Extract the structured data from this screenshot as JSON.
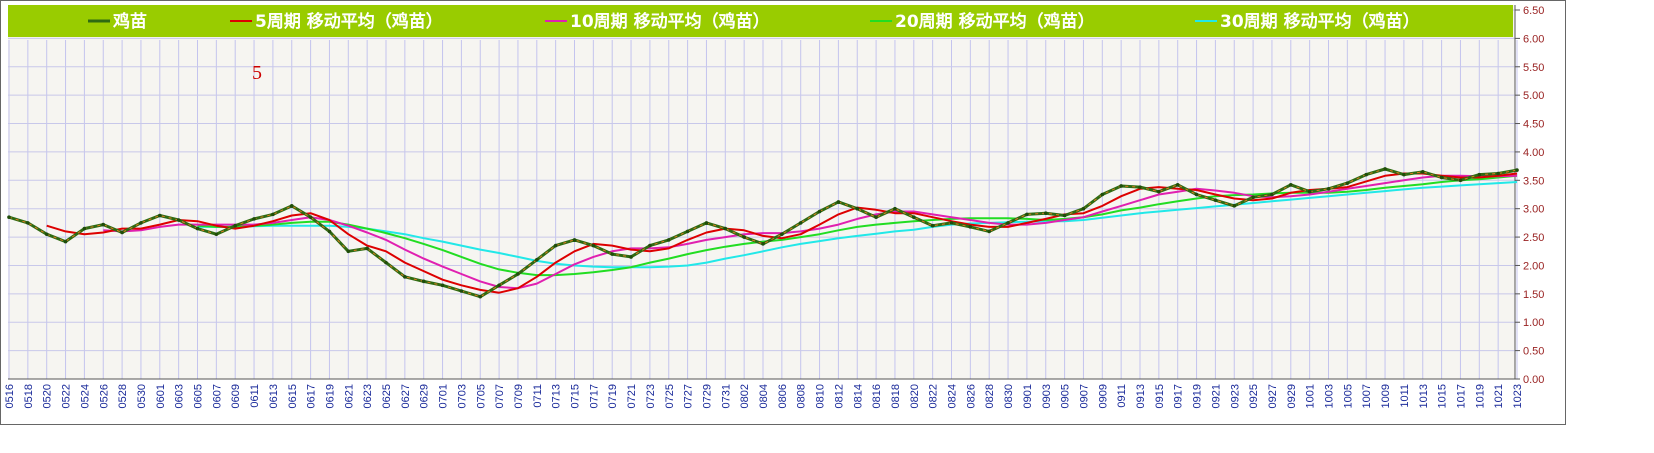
{
  "chart_data": {
    "type": "line",
    "annotations": [
      {
        "text": "5",
        "color": "#cc0000"
      }
    ],
    "categories": [
      "0516",
      "0518",
      "0520",
      "0522",
      "0524",
      "0526",
      "0528",
      "0530",
      "0601",
      "0603",
      "0605",
      "0607",
      "0609",
      "0611",
      "0613",
      "0615",
      "0617",
      "0619",
      "0621",
      "0623",
      "0625",
      "0627",
      "0629",
      "0701",
      "0703",
      "0705",
      "0707",
      "0709",
      "0711",
      "0713",
      "0715",
      "0717",
      "0719",
      "0721",
      "0723",
      "0725",
      "0727",
      "0729",
      "0731",
      "0802",
      "0804",
      "0806",
      "0808",
      "0810",
      "0812",
      "0814",
      "0816",
      "0818",
      "0820",
      "0822",
      "0824",
      "0826",
      "0828",
      "0830",
      "0901",
      "0903",
      "0905",
      "0907",
      "0909",
      "0911",
      "0913",
      "0915",
      "0917",
      "0919",
      "0921",
      "0923",
      "0925",
      "0927",
      "0929",
      "1001",
      "1003",
      "1005",
      "1007",
      "1009",
      "1011",
      "1013",
      "1015",
      "1017",
      "1019",
      "1021",
      "1023"
    ],
    "series": [
      {
        "name": "鸡苗",
        "color": "#2e6b12",
        "values": [
          2.85,
          2.75,
          2.55,
          2.42,
          2.65,
          2.72,
          2.58,
          2.75,
          2.88,
          2.8,
          2.65,
          2.55,
          2.7,
          2.82,
          2.9,
          3.05,
          2.85,
          2.6,
          2.25,
          2.3,
          2.05,
          1.8,
          1.72,
          1.65,
          1.55,
          1.45,
          1.65,
          1.85,
          2.1,
          2.35,
          2.45,
          2.35,
          2.2,
          2.15,
          2.35,
          2.45,
          2.6,
          2.75,
          2.65,
          2.5,
          2.38,
          2.55,
          2.75,
          2.95,
          3.12,
          3.0,
          2.85,
          3.0,
          2.85,
          2.7,
          2.75,
          2.68,
          2.6,
          2.75,
          2.9,
          2.92,
          2.88,
          3.0,
          3.25,
          3.4,
          3.38,
          3.3,
          3.42,
          3.25,
          3.15,
          3.05,
          3.2,
          3.25,
          3.42,
          3.3,
          3.35,
          3.45,
          3.6,
          3.7,
          3.6,
          3.65,
          3.55,
          3.5,
          3.6,
          3.62,
          3.68
        ]
      },
      {
        "name": "5周期 移动平均（鸡苗）",
        "color": "#dd0000",
        "values": [
          null,
          null,
          2.7,
          2.6,
          2.55,
          2.58,
          2.65,
          2.65,
          2.72,
          2.8,
          2.78,
          2.7,
          2.65,
          2.7,
          2.78,
          2.88,
          2.92,
          2.8,
          2.55,
          2.35,
          2.25,
          2.05,
          1.9,
          1.75,
          1.65,
          1.57,
          1.52,
          1.6,
          1.8,
          2.05,
          2.25,
          2.38,
          2.35,
          2.28,
          2.25,
          2.3,
          2.45,
          2.58,
          2.65,
          2.62,
          2.52,
          2.48,
          2.55,
          2.72,
          2.9,
          3.02,
          2.98,
          2.92,
          2.92,
          2.85,
          2.78,
          2.72,
          2.68,
          2.68,
          2.75,
          2.82,
          2.9,
          2.92,
          3.05,
          3.22,
          3.35,
          3.38,
          3.35,
          3.33,
          3.25,
          3.18,
          3.15,
          3.18,
          3.28,
          3.33,
          3.35,
          3.38,
          3.48,
          3.58,
          3.62,
          3.62,
          3.58,
          3.55,
          3.55,
          3.58,
          3.62
        ]
      },
      {
        "name": "10周期 移动平均（鸡苗）",
        "color": "#e020b0",
        "values": [
          null,
          null,
          null,
          null,
          null,
          2.62,
          2.6,
          2.62,
          2.68,
          2.72,
          2.72,
          2.72,
          2.72,
          2.72,
          2.75,
          2.8,
          2.85,
          2.8,
          2.7,
          2.58,
          2.45,
          2.28,
          2.12,
          1.98,
          1.85,
          1.72,
          1.62,
          1.6,
          1.68,
          1.85,
          2.02,
          2.15,
          2.25,
          2.3,
          2.3,
          2.32,
          2.38,
          2.45,
          2.5,
          2.55,
          2.57,
          2.57,
          2.6,
          2.65,
          2.72,
          2.82,
          2.9,
          2.95,
          2.95,
          2.9,
          2.85,
          2.8,
          2.75,
          2.72,
          2.72,
          2.75,
          2.8,
          2.85,
          2.95,
          3.05,
          3.15,
          3.25,
          3.3,
          3.35,
          3.32,
          3.28,
          3.22,
          3.2,
          3.22,
          3.25,
          3.3,
          3.35,
          3.4,
          3.45,
          3.5,
          3.55,
          3.58,
          3.58,
          3.57,
          3.57,
          3.58
        ]
      },
      {
        "name": "20周期 移动平均（鸡苗）",
        "color": "#22dd22",
        "values": [
          null,
          null,
          null,
          null,
          null,
          null,
          null,
          null,
          null,
          null,
          2.7,
          2.68,
          2.68,
          2.7,
          2.72,
          2.75,
          2.77,
          2.77,
          2.72,
          2.65,
          2.57,
          2.48,
          2.38,
          2.27,
          2.15,
          2.03,
          1.93,
          1.87,
          1.83,
          1.83,
          1.85,
          1.88,
          1.92,
          1.97,
          2.05,
          2.12,
          2.2,
          2.27,
          2.33,
          2.38,
          2.42,
          2.45,
          2.5,
          2.55,
          2.62,
          2.68,
          2.72,
          2.75,
          2.78,
          2.8,
          2.82,
          2.83,
          2.83,
          2.83,
          2.82,
          2.8,
          2.82,
          2.85,
          2.9,
          2.97,
          3.02,
          3.08,
          3.13,
          3.18,
          3.22,
          3.24,
          3.25,
          3.27,
          3.28,
          3.28,
          3.28,
          3.3,
          3.33,
          3.37,
          3.4,
          3.43,
          3.47,
          3.5,
          3.52,
          3.55,
          3.58
        ]
      },
      {
        "name": "30周期 移动平均（鸡苗）",
        "color": "#22e8e8",
        "values": [
          null,
          null,
          null,
          null,
          null,
          null,
          null,
          null,
          null,
          null,
          2.68,
          2.68,
          2.68,
          2.69,
          2.7,
          2.7,
          2.7,
          2.7,
          2.68,
          2.65,
          2.6,
          2.55,
          2.48,
          2.42,
          2.35,
          2.28,
          2.22,
          2.15,
          2.08,
          2.03,
          2.0,
          1.98,
          1.97,
          1.97,
          1.97,
          1.98,
          2.0,
          2.05,
          2.12,
          2.18,
          2.25,
          2.32,
          2.38,
          2.43,
          2.48,
          2.52,
          2.56,
          2.6,
          2.63,
          2.68,
          2.72,
          2.74,
          2.75,
          2.76,
          2.77,
          2.78,
          2.78,
          2.8,
          2.84,
          2.88,
          2.92,
          2.95,
          2.98,
          3.01,
          3.04,
          3.07,
          3.1,
          3.13,
          3.16,
          3.19,
          3.22,
          3.25,
          3.28,
          3.31,
          3.34,
          3.37,
          3.39,
          3.41,
          3.43,
          3.45,
          3.47
        ]
      }
    ],
    "ylim": [
      0,
      6.5
    ],
    "yticks": [
      {
        "value": 0,
        "label": "0.00"
      },
      {
        "value": 0.5,
        "label": "0.50"
      },
      {
        "value": 1,
        "label": "1.00"
      },
      {
        "value": 1.5,
        "label": "1.50"
      },
      {
        "value": 2,
        "label": "2.00"
      },
      {
        "value": 2.5,
        "label": "2.50"
      },
      {
        "value": 3,
        "label": "3.00"
      },
      {
        "value": 3.5,
        "label": "3.50"
      },
      {
        "value": 4,
        "label": "4.00"
      },
      {
        "value": 4.5,
        "label": "4.50"
      },
      {
        "value": 5,
        "label": "5.00"
      },
      {
        "value": 5.5,
        "label": "5.50"
      },
      {
        "value": 6,
        "label": "6.00"
      },
      {
        "value": 6.5,
        "label": "6.50"
      }
    ],
    "grid": true,
    "legend": "top",
    "legend_background": "#99cc00",
    "tick_label_color": "#992222",
    "category_label_color": "#1a2a9a"
  }
}
